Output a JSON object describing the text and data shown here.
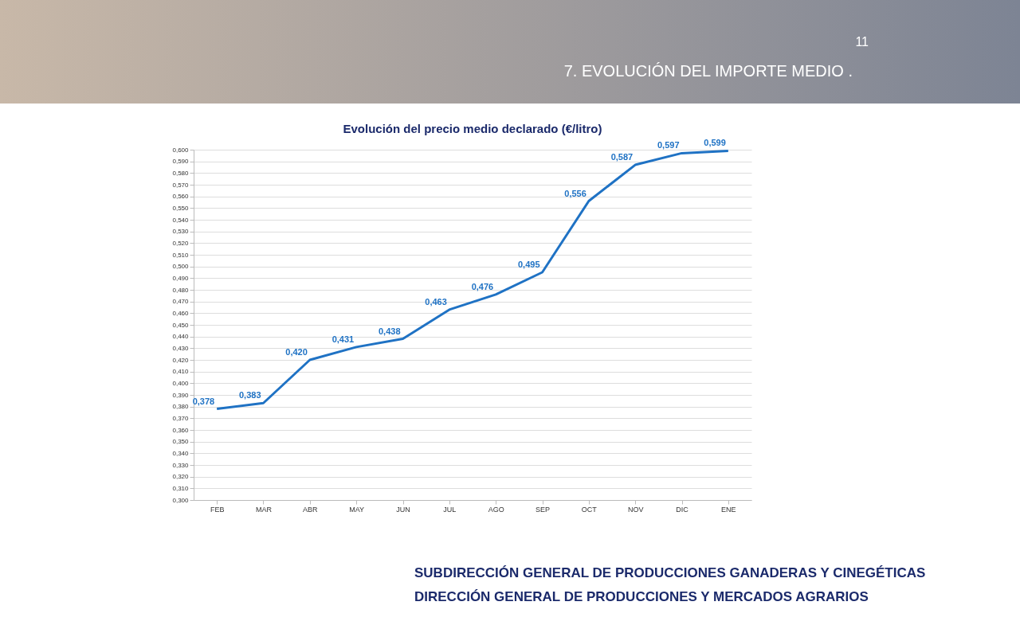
{
  "chart_data": {
    "type": "line",
    "title": "Evolución del precio medio declarado (€/litro)",
    "categories": [
      "FEB",
      "MAR",
      "ABR",
      "MAY",
      "JUN",
      "JUL",
      "AGO",
      "SEP",
      "OCT",
      "NOV",
      "DIC",
      "ENE"
    ],
    "series": [
      {
        "color": "#1f72c4",
        "values": [
          0.378,
          0.383,
          0.42,
          0.431,
          0.438,
          0.463,
          0.476,
          0.495,
          0.556,
          0.587,
          0.597,
          0.599
        ],
        "value_labels": [
          "0,378",
          "0,383",
          "0,420",
          "0,431",
          "0,438",
          "0,463",
          "0,476",
          "0,495",
          "0,556",
          "0,587",
          "0,597",
          "0,599"
        ]
      }
    ],
    "ylim": [
      0.3,
      0.6
    ],
    "yticks": [
      {
        "value": 0.3,
        "label": "0,300"
      },
      {
        "value": 0.31,
        "label": "0,310"
      },
      {
        "value": 0.32,
        "label": "0,320"
      },
      {
        "value": 0.33,
        "label": "0,330"
      },
      {
        "value": 0.34,
        "label": "0,340"
      },
      {
        "value": 0.35,
        "label": "0,350"
      },
      {
        "value": 0.36,
        "label": "0,360"
      },
      {
        "value": 0.37,
        "label": "0,370"
      },
      {
        "value": 0.38,
        "label": "0,380"
      },
      {
        "value": 0.39,
        "label": "0,390"
      },
      {
        "value": 0.4,
        "label": "0,400"
      },
      {
        "value": 0.41,
        "label": "0,410"
      },
      {
        "value": 0.42,
        "label": "0,420"
      },
      {
        "value": 0.43,
        "label": "0,430"
      },
      {
        "value": 0.44,
        "label": "0,440"
      },
      {
        "value": 0.45,
        "label": "0,450"
      },
      {
        "value": 0.46,
        "label": "0,460"
      },
      {
        "value": 0.47,
        "label": "0,470"
      },
      {
        "value": 0.48,
        "label": "0,480"
      },
      {
        "value": 0.49,
        "label": "0,490"
      },
      {
        "value": 0.5,
        "label": "0,500"
      },
      {
        "value": 0.51,
        "label": "0,510"
      },
      {
        "value": 0.52,
        "label": "0,520"
      },
      {
        "value": 0.53,
        "label": "0,530"
      },
      {
        "value": 0.54,
        "label": "0,540"
      },
      {
        "value": 0.55,
        "label": "0,550"
      },
      {
        "value": 0.56,
        "label": "0,560"
      },
      {
        "value": 0.57,
        "label": "0,570"
      },
      {
        "value": 0.58,
        "label": "0,580"
      },
      {
        "value": 0.59,
        "label": "0,590"
      },
      {
        "value": 0.6,
        "label": "0,600"
      }
    ],
    "grid": "y",
    "legend": false,
    "marker": "none",
    "line_style": "solid",
    "annotations": [
      "7.  EVOLUCIÓN DEL IMPORTE MEDIO .",
      "11",
      "SUBDIRECCIÓN GENERAL DE PRODUCCIONES GANADERAS Y CINEGÉTICAS",
      "DIRECCIÓN GENERAL DE PRODUCCIONES Y MERCADOS AGRARIOS"
    ]
  }
}
